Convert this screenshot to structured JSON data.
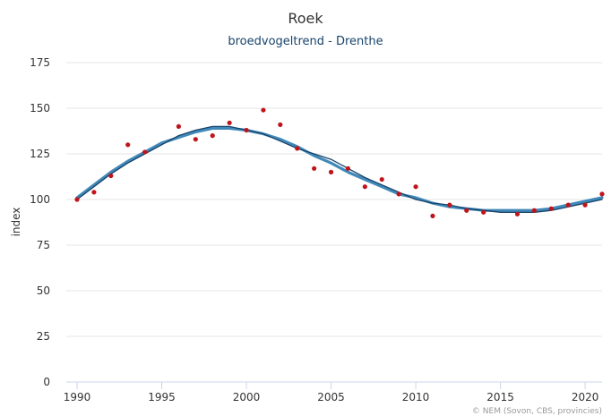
{
  "chart_data": {
    "type": "scatter",
    "title": "Roek",
    "subtitle": "broedvogeltrend - Drenthe",
    "ylabel": "index",
    "xlabel": "",
    "credit": "© NEM (Sovon, CBS, provincies)",
    "xlim": [
      1990,
      2021
    ],
    "ylim": [
      0,
      175
    ],
    "x_ticks": [
      1990,
      1995,
      2000,
      2005,
      2010,
      2015,
      2020
    ],
    "y_ticks": [
      0,
      25,
      50,
      75,
      100,
      125,
      150,
      175
    ],
    "grid": "horizontal",
    "legend": "none",
    "colors": {
      "points": "#c0141b",
      "trend": "#2b7bb0",
      "trend_dark": "#17436b",
      "subtitle": "#17436b"
    },
    "series": [
      {
        "type": "scatter",
        "x": [
          1990,
          1991,
          1992,
          1993,
          1994,
          1996,
          1997,
          1998,
          1999,
          2000,
          2001,
          2002,
          2003,
          2004,
          2005,
          2006,
          2007,
          2008,
          2009,
          2010,
          2011,
          2012,
          2013,
          2014,
          2016,
          2017,
          2018,
          2019,
          2020,
          2021
        ],
        "y": [
          100,
          104,
          113,
          130,
          126,
          140,
          133,
          135,
          142,
          138,
          149,
          141,
          128,
          117,
          115,
          117,
          107,
          111,
          103,
          107,
          91,
          97,
          94,
          93,
          92,
          94,
          95,
          97,
          97,
          103
        ]
      },
      {
        "type": "line",
        "x": [
          1990,
          1991,
          1992,
          1993,
          1994,
          1995,
          1996,
          1997,
          1998,
          1999,
          2000,
          2001,
          2002,
          2003,
          2004,
          2005,
          2006,
          2007,
          2008,
          2009,
          2010,
          2011,
          2012,
          2013,
          2014,
          2015,
          2016,
          2017,
          2018,
          2019,
          2020,
          2021
        ],
        "y": [
          101,
          108,
          115,
          121,
          126,
          131,
          134,
          137,
          139,
          139,
          138,
          136,
          133,
          129,
          124,
          120,
          115,
          111,
          107,
          103,
          101,
          98,
          96,
          95,
          94,
          94,
          94,
          94,
          95,
          97,
          99,
          101
        ]
      },
      {
        "type": "line",
        "x": [
          1990,
          1991,
          1992,
          1993,
          1994,
          1995,
          1996,
          1997,
          1998,
          1999,
          2000,
          2001,
          2002,
          2003,
          2004,
          2005,
          2006,
          2007,
          2008,
          2009,
          2010,
          2011,
          2012,
          2013,
          2014,
          2015,
          2016,
          2017,
          2018,
          2019,
          2020,
          2021
        ],
        "y": [
          100,
          107,
          114,
          120,
          125,
          130,
          135,
          138,
          140,
          140,
          138,
          136,
          132,
          128,
          125,
          122,
          117,
          112,
          108,
          104,
          100,
          98,
          97,
          95,
          94,
          93,
          93,
          93,
          94,
          96,
          98,
          100
        ]
      }
    ]
  }
}
